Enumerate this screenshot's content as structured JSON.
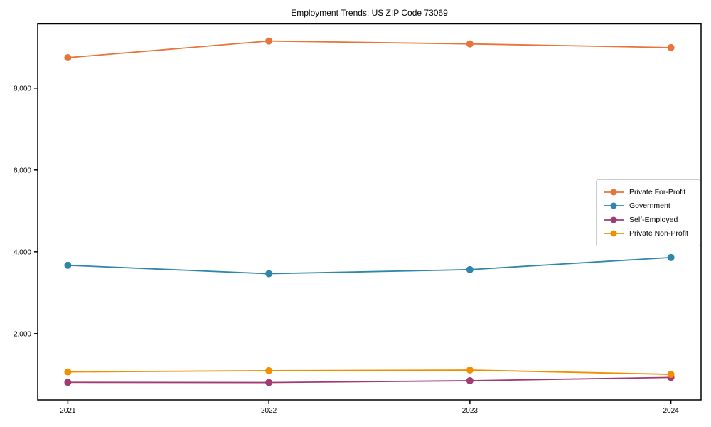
{
  "chart_data": {
    "type": "line",
    "title": "Employment Trends: US ZIP Code 73069",
    "xlabel": "",
    "ylabel": "",
    "x": [
      2021,
      2022,
      2023,
      2024
    ],
    "x_tick_labels": [
      "2021",
      "2022",
      "2023",
      "2024"
    ],
    "y_ticks": [
      2000,
      4000,
      6000,
      8000
    ],
    "y_tick_labels": [
      "2,000",
      "4,000",
      "6,000",
      "8,000"
    ],
    "xlim": [
      2020.85,
      2024.15
    ],
    "ylim": [
      380,
      9570
    ],
    "grid": false,
    "legend_position": "center-right",
    "series": [
      {
        "name": "Private For-Profit",
        "color": "#E8743B",
        "values": [
          8745,
          9150,
          9080,
          8990
        ]
      },
      {
        "name": "Government",
        "color": "#2E86AB",
        "values": [
          3670,
          3465,
          3565,
          3860
        ]
      },
      {
        "name": "Self-Employed",
        "color": "#A23B72",
        "values": [
          810,
          805,
          850,
          930
        ]
      },
      {
        "name": "Private Non-Profit",
        "color": "#F18F01",
        "values": [
          1065,
          1095,
          1110,
          1005
        ]
      }
    ],
    "axis_color": "#000000",
    "background_color": "#ffffff"
  }
}
